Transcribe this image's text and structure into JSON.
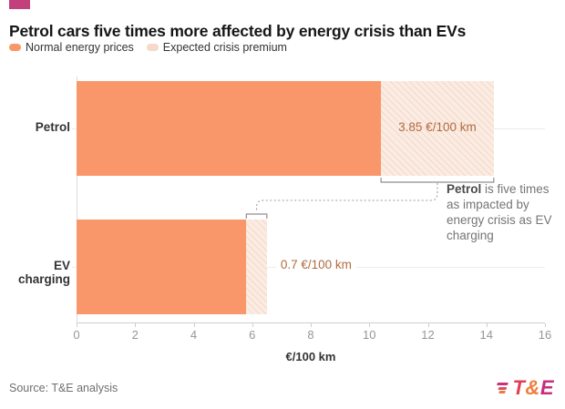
{
  "header": {
    "title": "Petrol cars five times more affected by energy crisis than EVs"
  },
  "chart_data": {
    "type": "bar",
    "orientation": "horizontal",
    "stacked": true,
    "title": "Petrol cars five times more affected by energy crisis than EVs",
    "categories": [
      "Petrol",
      "EV charging"
    ],
    "series": [
      {
        "name": "Normal energy prices",
        "values": [
          10.4,
          5.8
        ],
        "color": "#f9976a"
      },
      {
        "name": "Expected crisis premium",
        "values": [
          3.85,
          0.7
        ],
        "color": "#fbece3",
        "hatch_color": "#f3d8c7",
        "legend_color": "#f6d9c6"
      }
    ],
    "value_labels": [
      {
        "text": "3.85 €/100 km",
        "placement": "inside-premium"
      },
      {
        "text": "0.7 €/100 km",
        "placement": "right-of-bar"
      }
    ],
    "value_label_color": "#b16b40",
    "xlabel": "€/100 km",
    "xlim": [
      0,
      16
    ],
    "xticks": [
      0,
      2,
      4,
      6,
      8,
      10,
      12,
      14,
      16
    ],
    "grid": "row-leader-lines",
    "legend_position": "top-left",
    "annotation": {
      "bold": "Petrol",
      "rest": " is five times as impacted by energy crisis as EV charging"
    }
  },
  "footer": {
    "source": "Source: T&E analysis",
    "logo": {
      "t": "T",
      "amp": "&",
      "e": "E"
    }
  },
  "colors": {
    "brand_mark": "#c2417d",
    "bar_orange": "#f9976a",
    "premium_fill": "#fbece3",
    "premium_hatch": "#f3d8c7",
    "connector_gray": "#9e9e9e",
    "bracket_gray": "#8f8f8f"
  }
}
